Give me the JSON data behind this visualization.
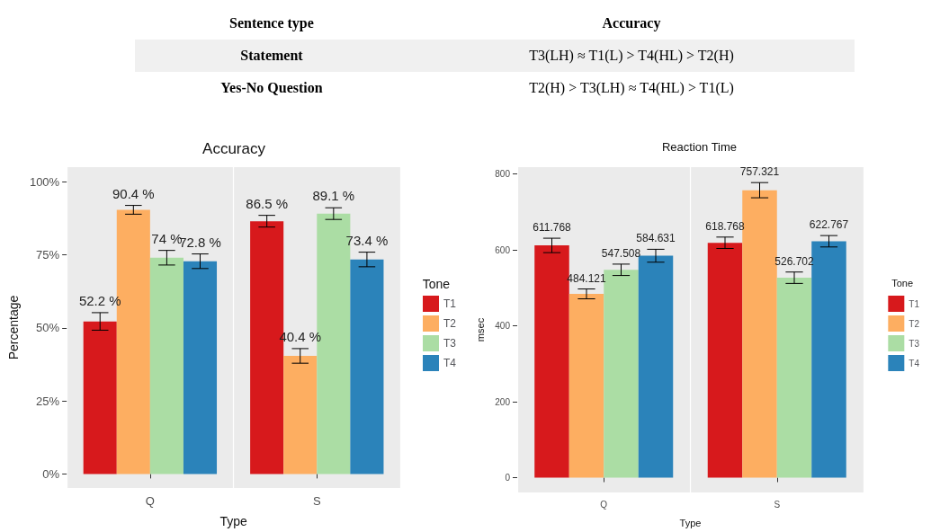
{
  "chart_data": [
    {
      "type": "other",
      "annotations": [
        "Sentence type",
        "Accuracy",
        "Statement",
        "T3(LH) ≈ T1(L) > T4(HL) > T2(H)",
        "Yes-No Question",
        "T2(H) > T3(LH) ≈ T4(HL) > T1(L)"
      ]
    },
    {
      "type": "bar",
      "title": "Accuracy",
      "xlabel": "Type",
      "ylabel": "Percentage",
      "legend_title": "Tone",
      "legend": "right",
      "grid": true,
      "categories": [
        "Q",
        "S"
      ],
      "ylim": [
        -4.8,
        105
      ],
      "yticks": [
        {
          "value": 0,
          "label": "0%"
        },
        {
          "value": 25,
          "label": "25%"
        },
        {
          "value": 50,
          "label": "50%"
        },
        {
          "value": 75,
          "label": "75%"
        },
        {
          "value": 100,
          "label": "100%"
        }
      ],
      "series": [
        {
          "name": "T1",
          "color": "#d7191c",
          "values": [
            52.2,
            86.5
          ],
          "errors": [
            3,
            2
          ],
          "value_labels": [
            "52.2 %",
            "86.5 %"
          ]
        },
        {
          "name": "T2",
          "color": "#fdae61",
          "values": [
            90.4,
            40.4
          ],
          "errors": [
            1.5,
            2.5
          ],
          "value_labels": [
            "90.4 %",
            "40.4 %"
          ]
        },
        {
          "name": "T3",
          "color": "#abdda4",
          "values": [
            74,
            89.1
          ],
          "errors": [
            2.5,
            2
          ],
          "value_labels": [
            "74 %",
            "89.1 %"
          ]
        },
        {
          "name": "T4",
          "color": "#2b83ba",
          "values": [
            72.8,
            73.4
          ],
          "errors": [
            2.5,
            2.5
          ],
          "value_labels": [
            "72.8 %",
            "73.4 %"
          ]
        }
      ]
    },
    {
      "type": "bar",
      "title": "Reaction Time",
      "xlabel": "Type",
      "ylabel": "msec",
      "legend_title": "Tone",
      "legend": "right",
      "grid": true,
      "data_labels": true,
      "categories": [
        "Q",
        "S"
      ],
      "ylim": [
        -39,
        818
      ],
      "yticks": [
        0,
        200,
        400,
        600,
        800
      ],
      "series": [
        {
          "name": "T1",
          "color": "#d7191c",
          "values": [
            611.768,
            618.768
          ],
          "errors": [
            19,
            15
          ]
        },
        {
          "name": "T2",
          "color": "#fdae61",
          "values": [
            484.121,
            757.321
          ],
          "errors": [
            13,
            20
          ]
        },
        {
          "name": "T3",
          "color": "#abdda4",
          "values": [
            547.508,
            526.702
          ],
          "errors": [
            15,
            15
          ]
        },
        {
          "name": "T4",
          "color": "#2b83ba",
          "values": [
            584.631,
            622.767
          ],
          "errors": [
            17,
            15
          ]
        }
      ]
    }
  ]
}
